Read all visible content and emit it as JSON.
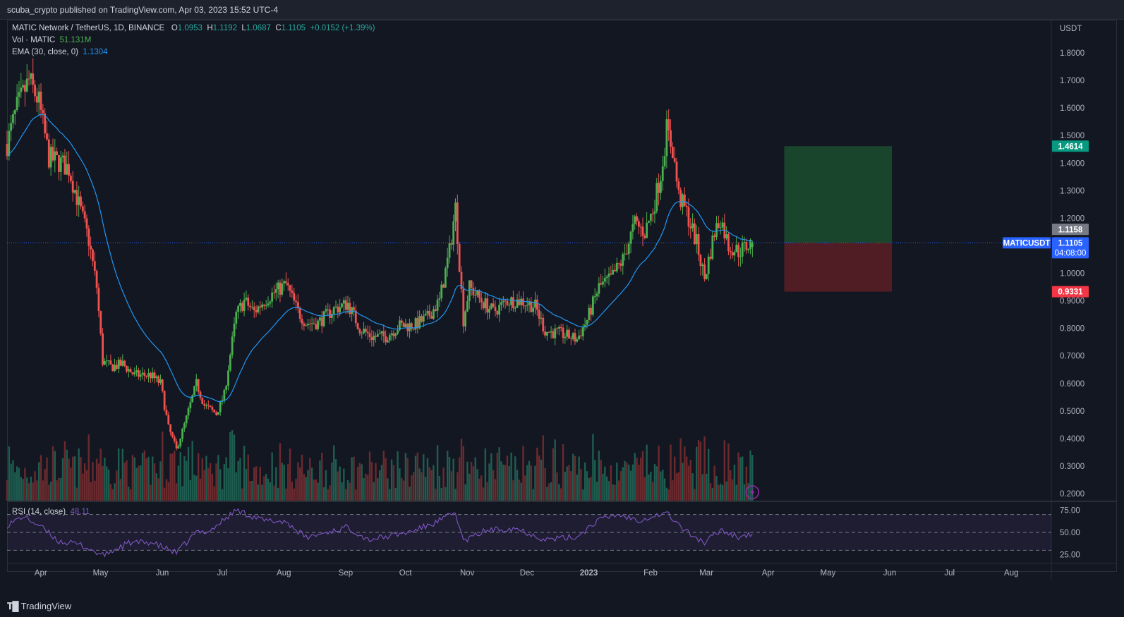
{
  "header": {
    "published": "scuba_crypto published on TradingView.com, Apr 03, 2023 15:52 UTC-4"
  },
  "legend": {
    "symbol": "MATIC Network / TetherUS, 1D, BINANCE",
    "open_label": "O",
    "open": "1.0953",
    "high_label": "H",
    "high": "1.1192",
    "low_label": "L",
    "low": "1.0687",
    "close_label": "C",
    "close": "1.1105",
    "change": "+0.0152 (+1.39%)",
    "vol_label": "Vol · MATIC",
    "vol_value": "51.131M",
    "ema_label": "EMA (30, close, 0)",
    "ema_value": "1.1304",
    "rsi_label": "RSI (14, close)",
    "rsi_value": "48.11"
  },
  "footer": {
    "brand": "TradingView",
    "logo": "tradingview-logo-icon"
  },
  "colors": {
    "background": "#131722",
    "grid": "#2a2e39",
    "up": "#26a69a",
    "up_candle": "#4caf50",
    "down": "#ef5350",
    "ema": "#2196f3",
    "rsi": "#7e57c2",
    "target_zone": "#1b4d2e",
    "stop_zone": "#5c1f26"
  },
  "chart_data": {
    "type": "candlestick",
    "pair": "MATICUSDT",
    "price_axis_unit": "USDT",
    "price_ticks": [
      "1.8000",
      "1.7000",
      "1.6000",
      "1.5000",
      "1.4000",
      "1.3000",
      "1.2000",
      "1.1000",
      "1.0000",
      "0.9000",
      "0.8000",
      "0.7000",
      "0.6000",
      "0.5000",
      "0.4000",
      "0.3000",
      "0.2000"
    ],
    "price_range": [
      0.2,
      1.8
    ],
    "time_labels": [
      "Apr",
      "May",
      "Jun",
      "Jul",
      "Aug",
      "Sep",
      "Oct",
      "Nov",
      "Dec",
      "2023",
      "Feb",
      "Mar",
      "Apr",
      "May",
      "Jun",
      "Jul",
      "Aug"
    ],
    "time_range": [
      "2022-03-25",
      "2023-08-31"
    ],
    "price_keypoints": [
      [
        "2022-03-25",
        1.47
      ],
      [
        "2022-03-30",
        1.6
      ],
      [
        "2022-04-05",
        1.7
      ],
      [
        "2022-04-10",
        1.62
      ],
      [
        "2022-04-15",
        1.42
      ],
      [
        "2022-04-21",
        1.4
      ],
      [
        "2022-04-25",
        1.38
      ],
      [
        "2022-04-30",
        1.25
      ],
      [
        "2022-05-05",
        1.12
      ],
      [
        "2022-05-09",
        0.95
      ],
      [
        "2022-05-12",
        0.68
      ],
      [
        "2022-05-16",
        0.66
      ],
      [
        "2022-05-22",
        0.67
      ],
      [
        "2022-05-28",
        0.63
      ],
      [
        "2022-06-05",
        0.63
      ],
      [
        "2022-06-10",
        0.6
      ],
      [
        "2022-06-14",
        0.44
      ],
      [
        "2022-06-18",
        0.36
      ],
      [
        "2022-06-22",
        0.45
      ],
      [
        "2022-06-28",
        0.6
      ],
      [
        "2022-07-02",
        0.52
      ],
      [
        "2022-07-08",
        0.49
      ],
      [
        "2022-07-12",
        0.56
      ],
      [
        "2022-07-18",
        0.85
      ],
      [
        "2022-07-22",
        0.9
      ],
      [
        "2022-07-27",
        0.86
      ],
      [
        "2022-08-01",
        0.9
      ],
      [
        "2022-08-06",
        0.93
      ],
      [
        "2022-08-12",
        0.96
      ],
      [
        "2022-08-18",
        0.86
      ],
      [
        "2022-08-22",
        0.82
      ],
      [
        "2022-08-28",
        0.82
      ],
      [
        "2022-09-05",
        0.87
      ],
      [
        "2022-09-12",
        0.89
      ],
      [
        "2022-09-18",
        0.8
      ],
      [
        "2022-09-24",
        0.77
      ],
      [
        "2022-10-01",
        0.77
      ],
      [
        "2022-10-08",
        0.81
      ],
      [
        "2022-10-15",
        0.81
      ],
      [
        "2022-10-22",
        0.84
      ],
      [
        "2022-10-28",
        0.9
      ],
      [
        "2022-11-02",
        1.08
      ],
      [
        "2022-11-05",
        1.24
      ],
      [
        "2022-11-09",
        0.83
      ],
      [
        "2022-11-12",
        0.95
      ],
      [
        "2022-11-18",
        0.9
      ],
      [
        "2022-11-24",
        0.86
      ],
      [
        "2022-12-01",
        0.9
      ],
      [
        "2022-12-08",
        0.9
      ],
      [
        "2022-12-15",
        0.88
      ],
      [
        "2022-12-20",
        0.79
      ],
      [
        "2022-12-28",
        0.78
      ],
      [
        "2023-01-05",
        0.76
      ],
      [
        "2023-01-10",
        0.83
      ],
      [
        "2023-01-16",
        0.95
      ],
      [
        "2023-01-22",
        0.98
      ],
      [
        "2023-01-28",
        1.05
      ],
      [
        "2023-02-03",
        1.18
      ],
      [
        "2023-02-08",
        1.15
      ],
      [
        "2023-02-12",
        1.23
      ],
      [
        "2023-02-16",
        1.36
      ],
      [
        "2023-02-19",
        1.52
      ],
      [
        "2023-02-22",
        1.45
      ],
      [
        "2023-02-25",
        1.28
      ],
      [
        "2023-03-01",
        1.22
      ],
      [
        "2023-03-06",
        1.11
      ],
      [
        "2023-03-10",
        0.98
      ],
      [
        "2023-03-15",
        1.15
      ],
      [
        "2023-03-18",
        1.2
      ],
      [
        "2023-03-22",
        1.1
      ],
      [
        "2023-03-27",
        1.08
      ],
      [
        "2023-04-03",
        1.11
      ]
    ],
    "ohlc_latest": {
      "open": 1.0953,
      "high": 1.1192,
      "low": 1.0687,
      "close": 1.1105
    },
    "ema_30": 1.1304,
    "position": {
      "start": "2023-04-19",
      "end": "2023-06-12",
      "entry": 1.1105,
      "target": 1.4614,
      "stop": 0.9331
    },
    "axis_tags": [
      {
        "label": "1.4614",
        "color": "#089981"
      },
      {
        "label": "1.1158",
        "color": "#787b86"
      },
      {
        "label": "1.1105",
        "sub": "04:08:00",
        "color": "#2962ff"
      },
      {
        "label": "0.9331",
        "color": "#f23645"
      }
    ],
    "pair_tag": "MATICUSDT",
    "volume": {
      "unit": "MATIC",
      "latest": "51.131M"
    },
    "rsi": {
      "period": 14,
      "latest": 48.11,
      "ticks": [
        "75.00",
        "50.00",
        "25.00"
      ],
      "upper": 70,
      "middle": 50,
      "lower": 30,
      "keypoints": [
        [
          "2022-03-25",
          58
        ],
        [
          "2022-04-02",
          68
        ],
        [
          "2022-04-10",
          58
        ],
        [
          "2022-04-20",
          40
        ],
        [
          "2022-05-01",
          36
        ],
        [
          "2022-05-12",
          24
        ],
        [
          "2022-05-25",
          38
        ],
        [
          "2022-06-05",
          39
        ],
        [
          "2022-06-18",
          27
        ],
        [
          "2022-06-28",
          50
        ],
        [
          "2022-07-05",
          52
        ],
        [
          "2022-07-18",
          75
        ],
        [
          "2022-08-01",
          63
        ],
        [
          "2022-08-12",
          62
        ],
        [
          "2022-08-22",
          44
        ],
        [
          "2022-09-05",
          52
        ],
        [
          "2022-09-12",
          56
        ],
        [
          "2022-09-22",
          42
        ],
        [
          "2022-10-01",
          45
        ],
        [
          "2022-10-14",
          51
        ],
        [
          "2022-10-25",
          60
        ],
        [
          "2022-11-05",
          72
        ],
        [
          "2022-11-09",
          40
        ],
        [
          "2022-11-20",
          52
        ],
        [
          "2022-12-05",
          55
        ],
        [
          "2022-12-20",
          42
        ],
        [
          "2023-01-05",
          45
        ],
        [
          "2023-01-15",
          63
        ],
        [
          "2023-01-25",
          70
        ],
        [
          "2023-02-05",
          64
        ],
        [
          "2023-02-19",
          72
        ],
        [
          "2023-02-28",
          52
        ],
        [
          "2023-03-10",
          38
        ],
        [
          "2023-03-18",
          53
        ],
        [
          "2023-03-27",
          45
        ],
        [
          "2023-04-03",
          48
        ]
      ]
    }
  }
}
